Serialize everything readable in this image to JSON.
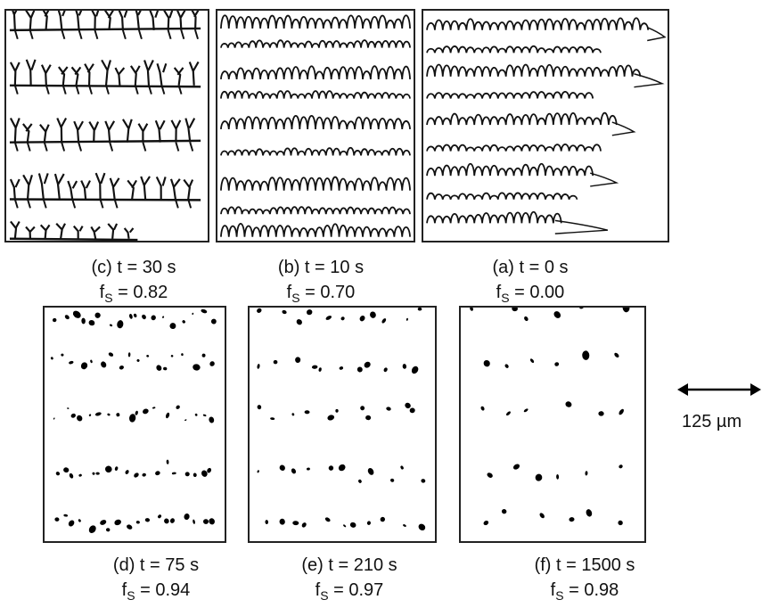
{
  "panels": [
    {
      "id": "c",
      "caption": "(c) t = 30 s",
      "fs_value": "0.82",
      "kind": "dendrite"
    },
    {
      "id": "b",
      "caption": "(b) t = 10 s",
      "fs_value": "0.70",
      "kind": "cells"
    },
    {
      "id": "a",
      "caption": "(a) t = 0 s",
      "fs_value": "0.00",
      "kind": "cells-tips"
    },
    {
      "id": "d",
      "caption": "(d) t = 75 s",
      "fs_value": "0.94",
      "kind": "fragments-dense"
    },
    {
      "id": "e",
      "caption": "(e) t = 210 s",
      "fs_value": "0.97",
      "kind": "fragments-medium"
    },
    {
      "id": "f",
      "caption": "(f) t = 1500 s",
      "fs_value": "0.98",
      "kind": "fragments-sparse"
    }
  ],
  "fs_symbol": "f",
  "fs_sub": "S",
  "fs_eq": " = ",
  "scale_bar": {
    "label": "125 µm"
  }
}
